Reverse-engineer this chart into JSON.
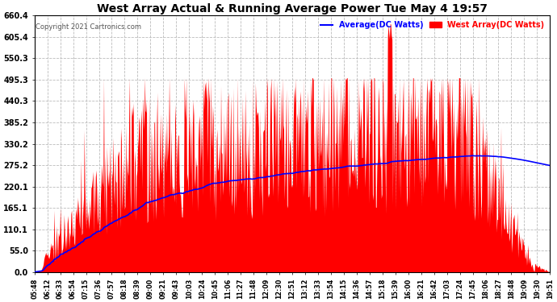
{
  "title": "West Array Actual & Running Average Power Tue May 4 19:57",
  "copyright": "Copyright 2021 Cartronics.com",
  "legend_avg": "Average(DC Watts)",
  "legend_west": "West Array(DC Watts)",
  "ylabel_ticks": [
    0.0,
    55.0,
    110.1,
    165.1,
    220.1,
    275.2,
    330.2,
    385.2,
    440.3,
    495.3,
    550.3,
    605.4,
    660.4
  ],
  "ylim": [
    0.0,
    660.4
  ],
  "title_color": "#000000",
  "legend_avg_color": "#0000ff",
  "legend_west_color": "#ff0000",
  "fill_color": "#ff0000",
  "avg_line_color": "#0000ff",
  "background_color": "#ffffff",
  "grid_color": "#aaaaaa",
  "x_tick_labels": [
    "05:48",
    "06:12",
    "06:33",
    "06:54",
    "07:15",
    "07:36",
    "07:57",
    "08:18",
    "08:39",
    "09:00",
    "09:21",
    "09:43",
    "10:03",
    "10:24",
    "10:45",
    "11:06",
    "11:27",
    "11:48",
    "12:09",
    "12:30",
    "12:51",
    "13:12",
    "13:33",
    "13:54",
    "14:15",
    "14:36",
    "14:57",
    "15:18",
    "15:39",
    "16:00",
    "16:21",
    "16:42",
    "17:03",
    "17:24",
    "17:45",
    "18:06",
    "18:27",
    "18:48",
    "19:09",
    "19:30",
    "19:51"
  ],
  "n_points": 820
}
